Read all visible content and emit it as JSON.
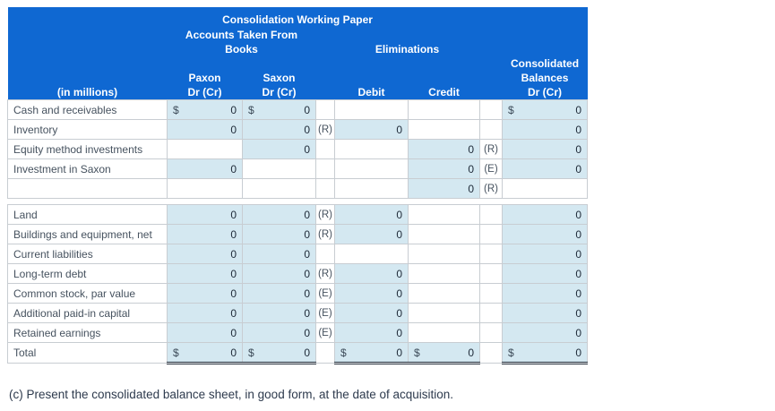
{
  "colors": {
    "header_blue": "#0f68d2",
    "input_cell_blue": "#d4e8f1",
    "total_rule": "#1c2734"
  },
  "header": {
    "title": "Consolidation Working Paper",
    "books_group_line1": "Accounts Taken From",
    "books_group_line2": "Books",
    "eliminations_group": "Eliminations",
    "consolidated_line1": "Consolidated",
    "consolidated_line2": "Balances",
    "consolidated_line3": "Dr (Cr)",
    "in_millions": "(in millions)",
    "paxon": "Paxon",
    "saxon": "Saxon",
    "paxon_drcr": "Dr (Cr)",
    "saxon_drcr": "Dr (Cr)",
    "debit": "Debit",
    "credit": "Credit"
  },
  "rows": [
    {
      "label": "Cash and receivables",
      "paxon": "0",
      "paxon_d": "$",
      "saxon": "0",
      "saxon_d": "$",
      "dref": "",
      "debit": "",
      "credit": "",
      "cref": "",
      "consol": "0",
      "consol_d": "$"
    },
    {
      "label": "Inventory",
      "paxon": "0",
      "saxon": "0",
      "dref": "(R)",
      "debit": "0",
      "credit": "",
      "cref": "",
      "consol": "0"
    },
    {
      "label": "Equity method investments",
      "paxon": "",
      "saxon": "0",
      "dref": "",
      "debit": "",
      "credit": "0",
      "cref": "(R)",
      "consol": "0"
    },
    {
      "label": "Investment in Saxon",
      "paxon": "0",
      "saxon": "",
      "dref": "",
      "debit": "",
      "credit": "0",
      "cref": "(E)",
      "consol": "0"
    },
    {
      "label": "",
      "paxon": "",
      "saxon": "",
      "dref": "",
      "debit": "",
      "credit": "0",
      "cref": "(R)",
      "consol": ""
    },
    {
      "gap": true
    },
    {
      "label": "Land",
      "paxon": "0",
      "saxon": "0",
      "dref": "(R)",
      "debit": "0",
      "credit": "",
      "cref": "",
      "consol": "0"
    },
    {
      "label": "Buildings and equipment, net",
      "paxon": "0",
      "saxon": "0",
      "dref": "(R)",
      "debit": "0",
      "credit": "",
      "cref": "",
      "consol": "0"
    },
    {
      "label": "Current liabilities",
      "paxon": "0",
      "saxon": "0",
      "dref": "",
      "debit": "",
      "credit": "",
      "cref": "",
      "consol": "0"
    },
    {
      "label": "Long-term debt",
      "paxon": "0",
      "saxon": "0",
      "dref": "(R)",
      "debit": "0",
      "credit": "",
      "cref": "",
      "consol": "0"
    },
    {
      "label": "Common stock, par value",
      "paxon": "0",
      "saxon": "0",
      "dref": "(E)",
      "debit": "0",
      "credit": "",
      "cref": "",
      "consol": "0"
    },
    {
      "label": "Additional paid-in capital",
      "paxon": "0",
      "saxon": "0",
      "dref": "(E)",
      "debit": "0",
      "credit": "",
      "cref": "",
      "consol": "0"
    },
    {
      "label": "Retained earnings",
      "paxon": "0",
      "saxon": "0",
      "dref": "(E)",
      "debit": "0",
      "credit": "",
      "cref": "",
      "consol": "0"
    },
    {
      "label": "Total",
      "total": true,
      "paxon": "0",
      "paxon_d": "$",
      "saxon": "0",
      "saxon_d": "$",
      "dref": "",
      "debit": "0",
      "debit_d": "$",
      "credit": "0",
      "credit_d": "$",
      "cref": "",
      "consol": "0",
      "consol_d": "$"
    }
  ],
  "caption": "(c) Present the consolidated balance sheet, in good form, at the date of acquisition."
}
